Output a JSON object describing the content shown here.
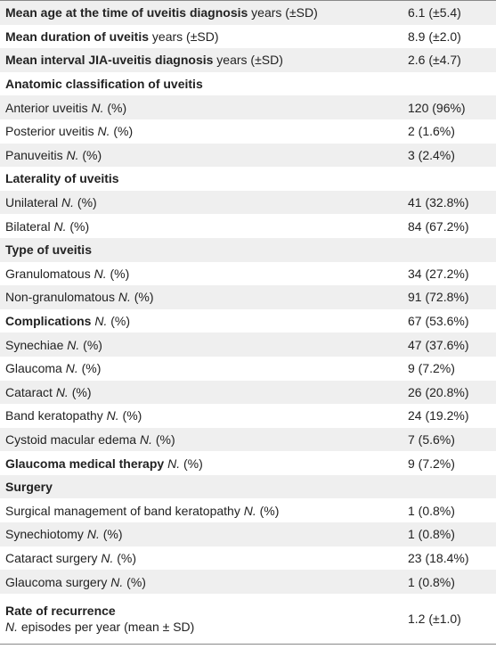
{
  "table": {
    "rows": [
      {
        "label": [
          {
            "text": "Mean age at the time of uveitis diagnosis",
            "style": "bold"
          },
          {
            "text": " years (±SD)",
            "style": "normal"
          }
        ],
        "value": "6.1 (±5.4)"
      },
      {
        "label": [
          {
            "text": "Mean duration of uveitis",
            "style": "bold"
          },
          {
            "text": " years (±SD)",
            "style": "normal"
          }
        ],
        "value": "8.9 (±2.0)"
      },
      {
        "label": [
          {
            "text": "Mean interval JIA-uveitis diagnosis",
            "style": "bold"
          },
          {
            "text": " years (±SD)",
            "style": "normal"
          }
        ],
        "value": "2.6 (±4.7)"
      },
      {
        "label": [
          {
            "text": "Anatomic classification of uveitis",
            "style": "bold"
          }
        ]
      },
      {
        "label": [
          {
            "text": "Anterior uveitis ",
            "style": "normal"
          },
          {
            "text": "N.",
            "style": "italic"
          },
          {
            "text": " (%)",
            "style": "normal"
          }
        ],
        "value": "120 (96%)"
      },
      {
        "label": [
          {
            "text": "Posterior uveitis ",
            "style": "normal"
          },
          {
            "text": "N.",
            "style": "italic"
          },
          {
            "text": " (%)",
            "style": "normal"
          }
        ],
        "value": "2 (1.6%)"
      },
      {
        "label": [
          {
            "text": "Panuveitis ",
            "style": "normal"
          },
          {
            "text": "N.",
            "style": "italic"
          },
          {
            "text": " (%)",
            "style": "normal"
          }
        ],
        "value": "3 (2.4%)"
      },
      {
        "label": [
          {
            "text": "Laterality of uveitis",
            "style": "bold"
          }
        ]
      },
      {
        "label": [
          {
            "text": "Unilateral ",
            "style": "normal"
          },
          {
            "text": "N.",
            "style": "italic"
          },
          {
            "text": " (%)",
            "style": "normal"
          }
        ],
        "value": "41 (32.8%)"
      },
      {
        "label": [
          {
            "text": "Bilateral ",
            "style": "normal"
          },
          {
            "text": "N.",
            "style": "italic"
          },
          {
            "text": " (%)",
            "style": "normal"
          }
        ],
        "value": "84 (67.2%)"
      },
      {
        "label": [
          {
            "text": "Type of uveitis",
            "style": "bold"
          }
        ]
      },
      {
        "label": [
          {
            "text": "Granulomatous ",
            "style": "normal"
          },
          {
            "text": "N.",
            "style": "italic"
          },
          {
            "text": " (%)",
            "style": "normal"
          }
        ],
        "value": "34 (27.2%)"
      },
      {
        "label": [
          {
            "text": "Non-granulomatous ",
            "style": "normal"
          },
          {
            "text": "N.",
            "style": "italic"
          },
          {
            "text": " (%)",
            "style": "normal"
          }
        ],
        "value": "91 (72.8%)"
      },
      {
        "label": [
          {
            "text": "Complications",
            "style": "bold"
          },
          {
            "text": " ",
            "style": "normal"
          },
          {
            "text": "N.",
            "style": "italic"
          },
          {
            "text": " (%)",
            "style": "normal"
          }
        ],
        "value": "67 (53.6%)"
      },
      {
        "label": [
          {
            "text": "Synechiae ",
            "style": "normal"
          },
          {
            "text": "N.",
            "style": "italic"
          },
          {
            "text": " (%)",
            "style": "normal"
          }
        ],
        "value": "47 (37.6%)"
      },
      {
        "label": [
          {
            "text": "Glaucoma ",
            "style": "normal"
          },
          {
            "text": "N.",
            "style": "italic"
          },
          {
            "text": " (%)",
            "style": "normal"
          }
        ],
        "value": "9 (7.2%)"
      },
      {
        "label": [
          {
            "text": "Cataract ",
            "style": "normal"
          },
          {
            "text": "N.",
            "style": "italic"
          },
          {
            "text": " (%)",
            "style": "normal"
          }
        ],
        "value": "26 (20.8%)"
      },
      {
        "label": [
          {
            "text": "Band keratopathy ",
            "style": "normal"
          },
          {
            "text": "N.",
            "style": "italic"
          },
          {
            "text": " (%)",
            "style": "normal"
          }
        ],
        "value": "24 (19.2%)"
      },
      {
        "label": [
          {
            "text": "Cystoid macular edema ",
            "style": "normal"
          },
          {
            "text": "N.",
            "style": "italic"
          },
          {
            "text": " (%)",
            "style": "normal"
          }
        ],
        "value": "7 (5.6%)"
      },
      {
        "label": [
          {
            "text": "Glaucoma medical therapy",
            "style": "bold"
          },
          {
            "text": " ",
            "style": "normal"
          },
          {
            "text": "N.",
            "style": "italic"
          },
          {
            "text": " (%)",
            "style": "normal"
          }
        ],
        "value": "9 (7.2%)"
      },
      {
        "label": [
          {
            "text": "Surgery",
            "style": "bold"
          }
        ]
      },
      {
        "label": [
          {
            "text": "Surgical management of band keratopathy ",
            "style": "normal"
          },
          {
            "text": "N.",
            "style": "italic"
          },
          {
            "text": " (%)",
            "style": "normal"
          }
        ],
        "value": "1 (0.8%)"
      },
      {
        "label": [
          {
            "text": "Synechiotomy ",
            "style": "normal"
          },
          {
            "text": "N.",
            "style": "italic"
          },
          {
            "text": " (%)",
            "style": "normal"
          }
        ],
        "value": "1 (0.8%)"
      },
      {
        "label": [
          {
            "text": "Cataract surgery ",
            "style": "normal"
          },
          {
            "text": "N.",
            "style": "italic"
          },
          {
            "text": " (%)",
            "style": "normal"
          }
        ],
        "value": "23 (18.4%)"
      },
      {
        "label": [
          {
            "text": "Glaucoma surgery ",
            "style": "normal"
          },
          {
            "text": "N.",
            "style": "italic"
          },
          {
            "text": " (%)",
            "style": "normal"
          }
        ],
        "value": "1 (0.8%)"
      },
      {
        "label": [
          {
            "text": "Rate of recurrence",
            "style": "bold"
          }
        ],
        "sublabel": [
          {
            "text": "N.",
            "style": "italic"
          },
          {
            "text": " episodes per year (mean ± SD)",
            "style": "normal"
          }
        ],
        "value": "1.2 (±1.0)"
      }
    ]
  }
}
